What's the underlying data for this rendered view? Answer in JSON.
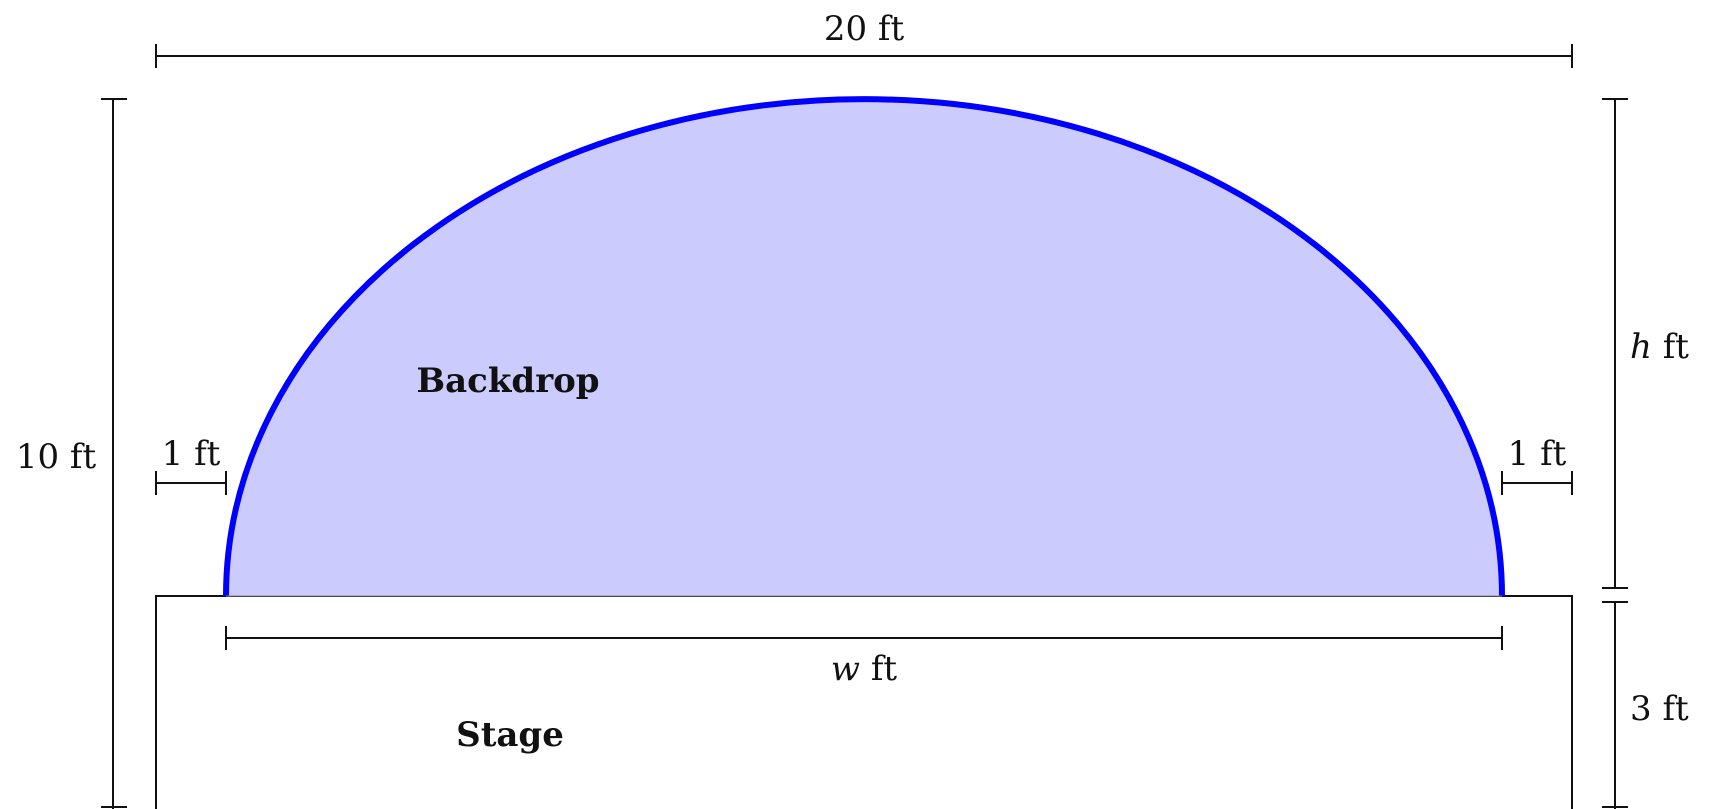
{
  "dimensions": {
    "total_width": "20 ft",
    "total_height": "10 ft",
    "left_margin": "1 ft",
    "right_margin": "1 ft",
    "backdrop_height_var": "h",
    "backdrop_height_unit": " ft",
    "stage_width_var": "w",
    "stage_width_unit": " ft",
    "stage_height": "3 ft"
  },
  "regions": {
    "backdrop": "Backdrop",
    "stage": "Stage"
  },
  "colors": {
    "backdrop_fill": "#cbcbfd",
    "backdrop_stroke": "#0000ff",
    "line": "#111111"
  }
}
